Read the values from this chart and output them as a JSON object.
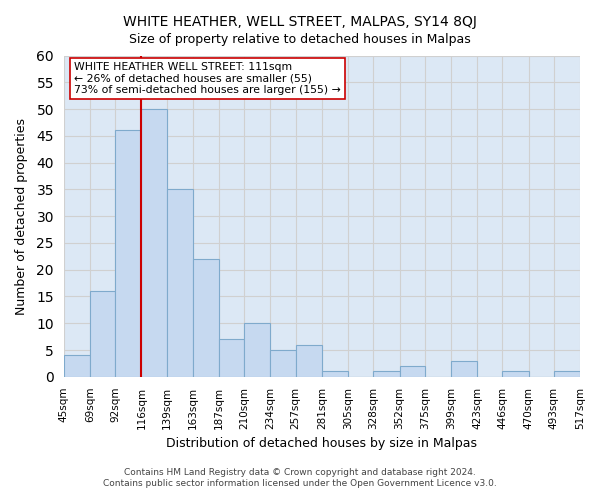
{
  "title": "WHITE HEATHER, WELL STREET, MALPAS, SY14 8QJ",
  "subtitle": "Size of property relative to detached houses in Malpas",
  "xlabel": "Distribution of detached houses by size in Malpas",
  "ylabel": "Number of detached properties",
  "bar_edges": [
    45,
    69,
    92,
    116,
    139,
    163,
    187,
    210,
    234,
    257,
    281,
    305,
    328,
    352,
    375,
    399,
    423,
    446,
    470,
    493,
    517
  ],
  "bar_heights": [
    4,
    16,
    46,
    50,
    35,
    22,
    7,
    10,
    5,
    6,
    1,
    0,
    1,
    2,
    0,
    3,
    0,
    1,
    0,
    1
  ],
  "bar_color": "#c6d9f0",
  "bar_edge_color": "#7faacc",
  "property_line_x": 116,
  "property_line_color": "#cc0000",
  "ylim": [
    0,
    60
  ],
  "yticks": [
    0,
    5,
    10,
    15,
    20,
    25,
    30,
    35,
    40,
    45,
    50,
    55,
    60
  ],
  "x_labels": [
    "45sqm",
    "69sqm",
    "92sqm",
    "116sqm",
    "139sqm",
    "163sqm",
    "187sqm",
    "210sqm",
    "234sqm",
    "257sqm",
    "281sqm",
    "305sqm",
    "328sqm",
    "352sqm",
    "375sqm",
    "399sqm",
    "423sqm",
    "446sqm",
    "470sqm",
    "493sqm",
    "517sqm"
  ],
  "annotation_title": "WHITE HEATHER WELL STREET: 111sqm",
  "annotation_line1": "← 26% of detached houses are smaller (55)",
  "annotation_line2": "73% of semi-detached houses are larger (155) →",
  "footer_line1": "Contains HM Land Registry data © Crown copyright and database right 2024.",
  "footer_line2": "Contains public sector information licensed under the Open Government Licence v3.0.",
  "grid_color": "#d0d0d0",
  "background_color": "#ffffff",
  "plot_bg_color": "#dce8f5"
}
